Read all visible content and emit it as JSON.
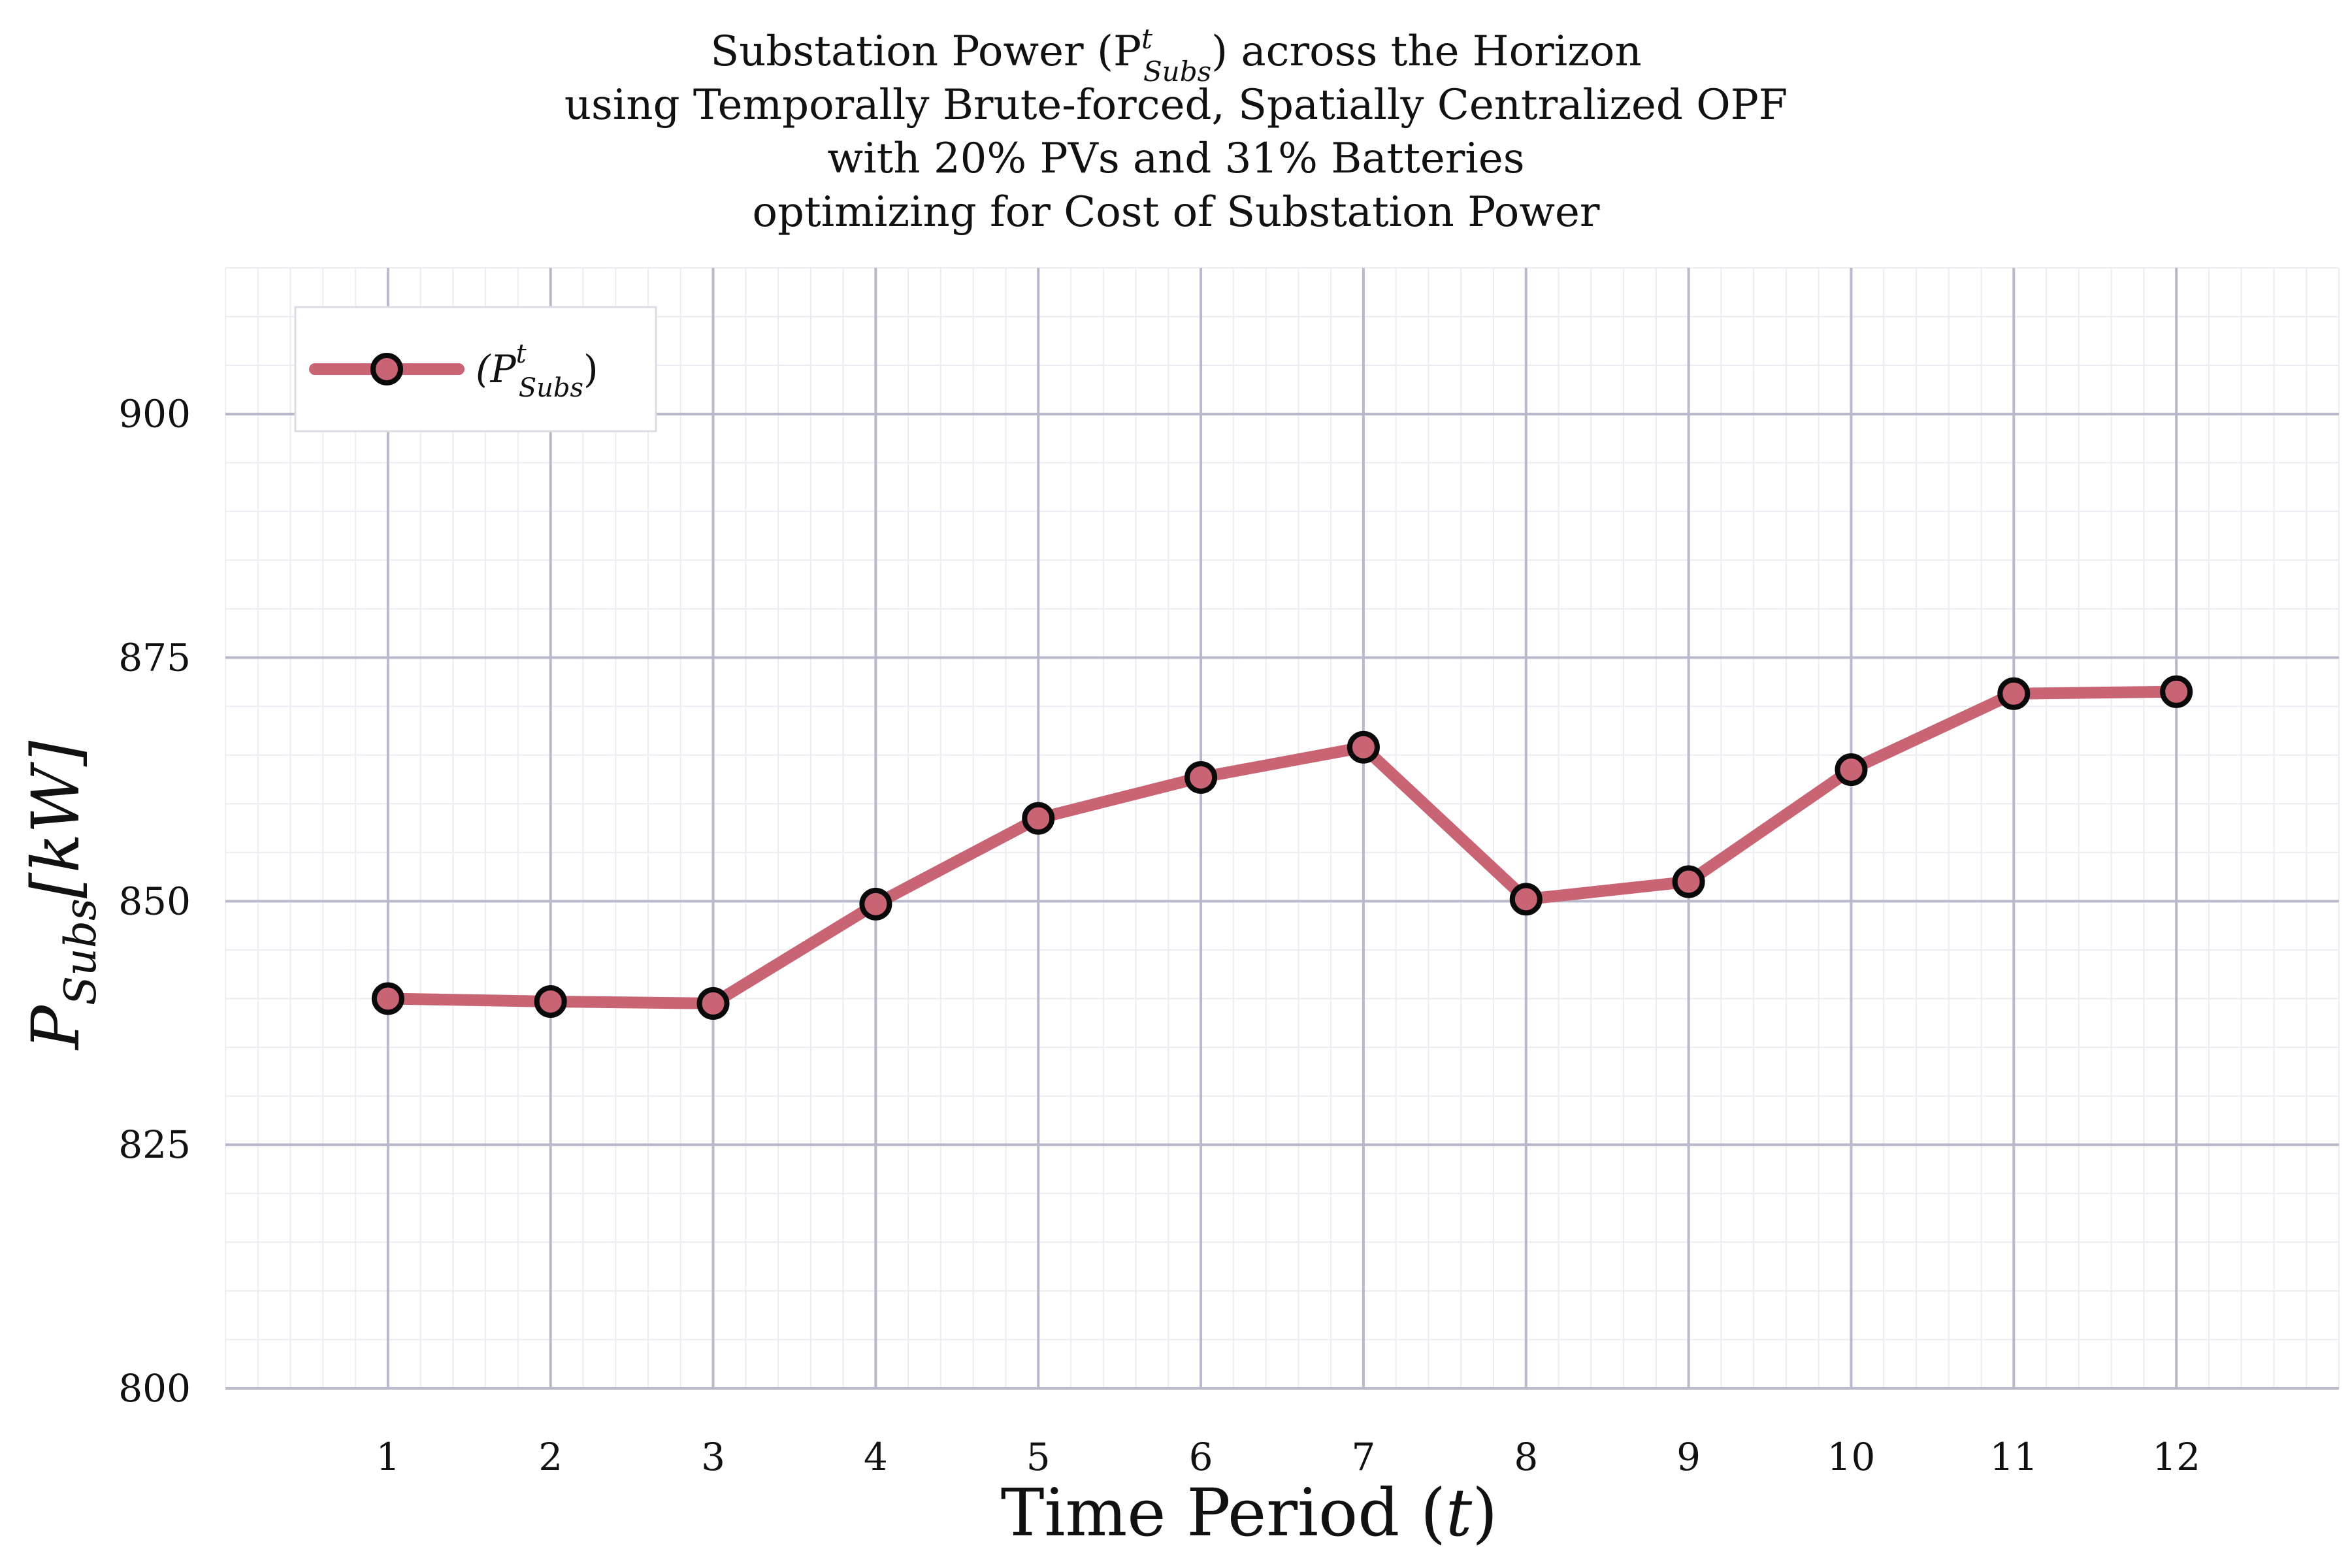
{
  "chart_data": {
    "type": "line",
    "title_lines": [
      "Substation Power (P",
      "using Temporally Brute-forced, Spatially Centralized OPF",
      "with 20% PVs and 31% Batteries",
      "optimizing for Cost of Substation Power"
    ],
    "title_math": {
      "sub": "Subs",
      "sup": "t",
      "suffix": ") across the Horizon"
    },
    "xlabel": "Time Period (",
    "xlabel_var": "t",
    "xlabel_close": ")",
    "ylabel_main": "P",
    "ylabel_sub": "Subs",
    "ylabel_unit": "[kW]",
    "x": [
      1,
      2,
      3,
      4,
      5,
      6,
      7,
      8,
      9,
      10,
      11,
      12
    ],
    "series": [
      {
        "name_main": "(P",
        "name_sub": "Subs",
        "name_sup": "t",
        "name_close": ")",
        "values": [
          840,
          839.7,
          839.5,
          849.7,
          858.5,
          862.7,
          865.8,
          850.2,
          852.0,
          863.5,
          871.3,
          871.5
        ]
      }
    ],
    "xlim": [
      0,
      13
    ],
    "ylim": [
      800,
      915
    ],
    "yticks": [
      800,
      825,
      850,
      875,
      900
    ],
    "xticks": [
      1,
      2,
      3,
      4,
      5,
      6,
      7,
      8,
      9,
      10,
      11,
      12
    ],
    "grid": true,
    "legend_position": "top-left",
    "colors": {
      "line": "#c96474",
      "marker_edge": "#0a0a0a",
      "major_grid": "#b9b9cc",
      "minor_grid": "#ececf2"
    }
  }
}
